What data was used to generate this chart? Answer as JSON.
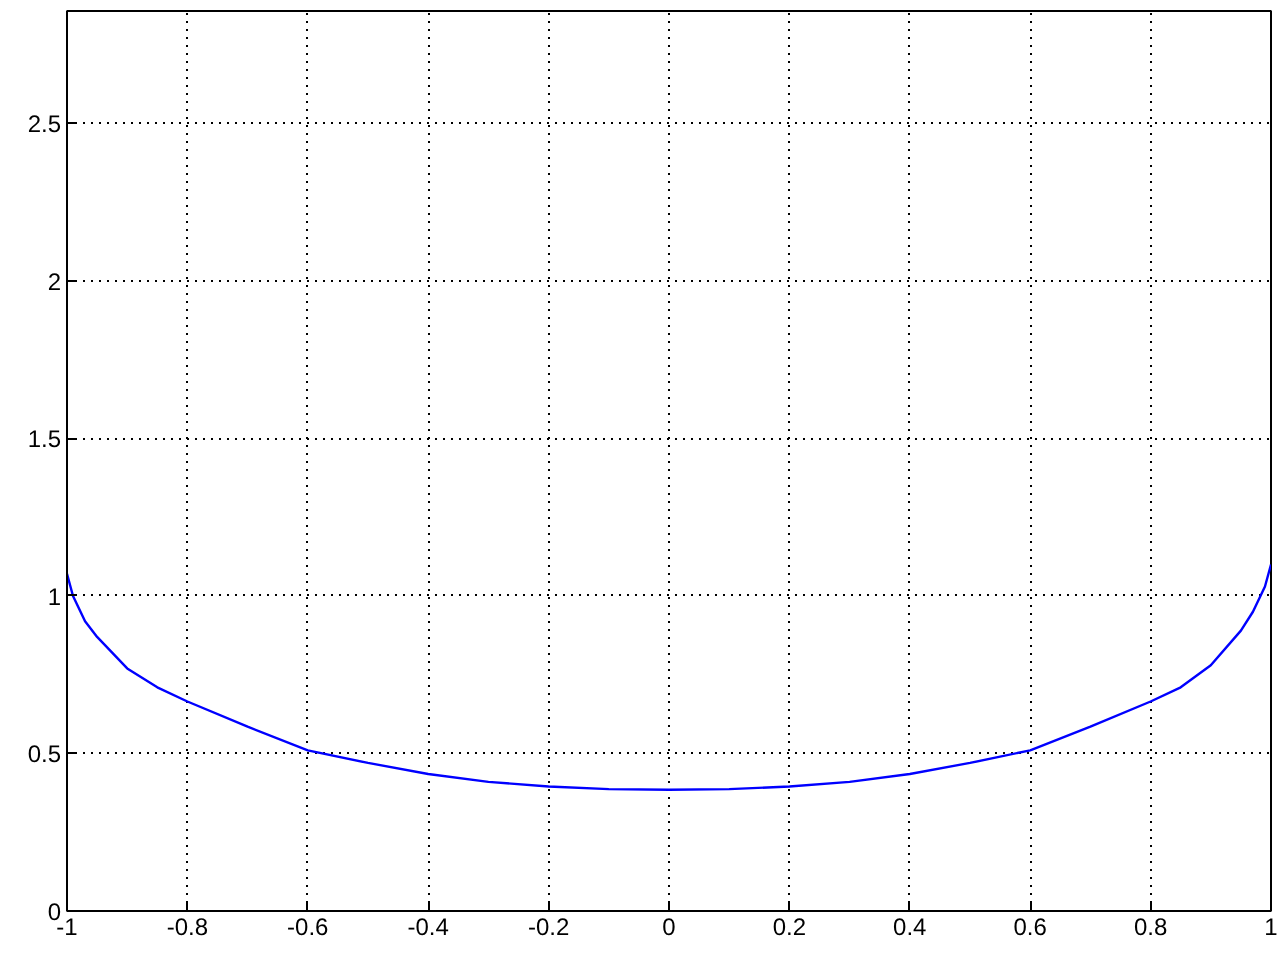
{
  "chart_data": {
    "type": "line",
    "x": [
      -1,
      -0.99,
      -0.97,
      -0.95,
      -0.9,
      -0.85,
      -0.8,
      -0.7,
      -0.6,
      -0.5,
      -0.4,
      -0.3,
      -0.2,
      -0.1,
      0,
      0.1,
      0.2,
      0.3,
      0.4,
      0.5,
      0.6,
      0.7,
      0.8,
      0.85,
      0.9,
      0.95,
      0.97,
      0.99,
      1
    ],
    "series": [
      {
        "color": "#0000ff",
        "values": [
          1.07,
          1.0,
          0.92,
          0.87,
          0.77,
          0.71,
          0.665,
          0.585,
          0.51,
          0.47,
          0.435,
          0.41,
          0.395,
          0.387,
          0.385,
          0.387,
          0.395,
          0.41,
          0.435,
          0.47,
          0.51,
          0.585,
          0.665,
          0.71,
          0.78,
          0.89,
          0.95,
          1.03,
          1.1
        ]
      }
    ],
    "xlim": [
      -1,
      1
    ],
    "ylim": [
      0,
      2.857
    ],
    "xticks": [
      -1,
      -0.8,
      -0.6,
      -0.4,
      -0.2,
      0,
      0.2,
      0.4,
      0.6,
      0.8,
      1
    ],
    "yticks": [
      0,
      0.5,
      1,
      1.5,
      2,
      2.5
    ],
    "grid": true,
    "line_style": "solid"
  }
}
